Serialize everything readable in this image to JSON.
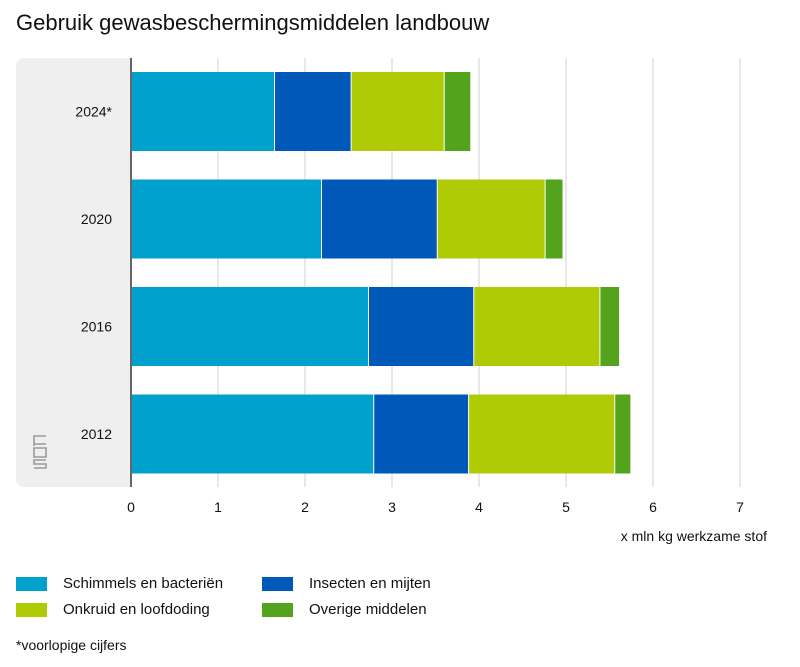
{
  "chart_data": {
    "type": "bar",
    "orientation": "horizontal",
    "stacked": true,
    "title": "Gebruik gewasbeschermingsmiddelen landbouw",
    "xlabel": "x mln kg werkzame stof",
    "ylabel": "",
    "xlim": [
      0,
      7
    ],
    "xticks": [
      "0",
      "1",
      "2",
      "3",
      "4",
      "5",
      "6",
      "7"
    ],
    "categories": [
      "2024*",
      "2020",
      "2016",
      "2012"
    ],
    "series": [
      {
        "name": "Schimmels en bacteriën",
        "color": "#00a1cd",
        "values": [
          1.65,
          2.19,
          2.73,
          2.79
        ]
      },
      {
        "name": "Insecten en mijten",
        "color": "#0058b8",
        "values": [
          0.88,
          1.33,
          1.21,
          1.09
        ]
      },
      {
        "name": "Onkruid en loofdoding",
        "color": "#afcb05",
        "values": [
          1.07,
          1.24,
          1.45,
          1.68
        ]
      },
      {
        "name": "Overige middelen",
        "color": "#53a31d",
        "values": [
          0.3,
          0.2,
          0.22,
          0.18
        ]
      }
    ],
    "footnote": "*voorlopige cijfers"
  }
}
